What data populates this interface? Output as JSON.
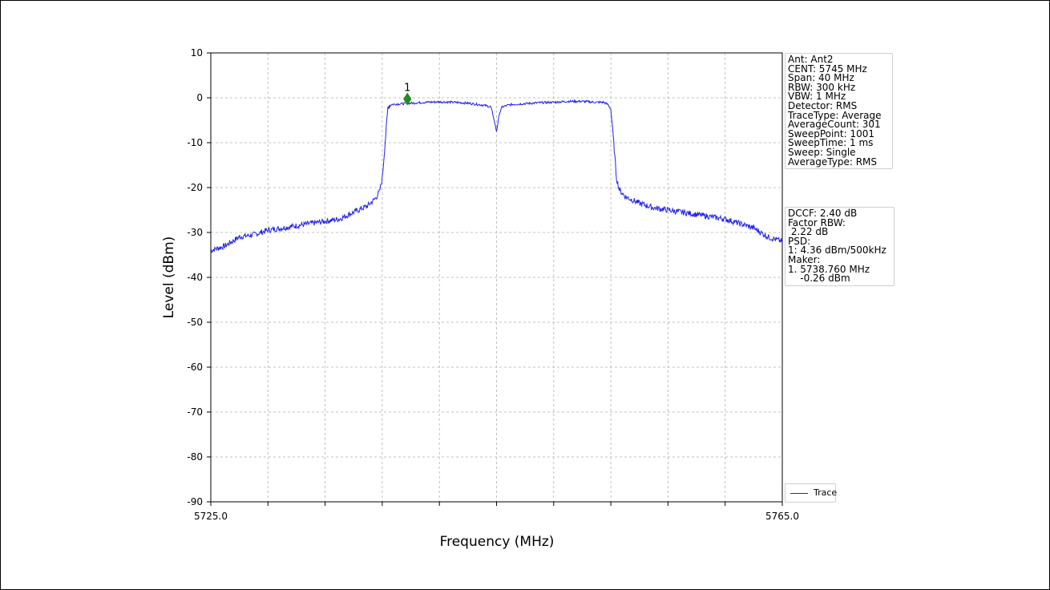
{
  "chart_data": {
    "type": "line",
    "xlabel": "Frequency (MHz)",
    "ylabel": "Level (dBm)",
    "xlim": [
      5725.0,
      5765.0
    ],
    "ylim": [
      -90,
      10
    ],
    "x_tick_labels": [
      "5725.0",
      "5765.0"
    ],
    "x_minor_ticks": [
      5729,
      5733,
      5737,
      5741,
      5745,
      5749,
      5753,
      5757,
      5761
    ],
    "y_ticks": [
      10,
      0,
      -10,
      -20,
      -30,
      -40,
      -50,
      -60,
      -70,
      -80,
      -90
    ],
    "grid": true,
    "series": [
      {
        "name": "Trace",
        "color": "#2222ee",
        "x": [
          5725.0,
          5726.0,
          5727.0,
          5728.0,
          5729.0,
          5730.0,
          5731.0,
          5732.0,
          5733.0,
          5734.0,
          5735.0,
          5736.0,
          5736.5,
          5736.8,
          5737.0,
          5737.2,
          5737.4,
          5737.6,
          5738.0,
          5739.0,
          5740.0,
          5741.0,
          5742.0,
          5743.0,
          5744.0,
          5744.6,
          5744.8,
          5745.0,
          5745.2,
          5745.4,
          5746.0,
          5747.0,
          5748.0,
          5749.0,
          5750.0,
          5751.0,
          5752.0,
          5752.5,
          5752.8,
          5753.0,
          5753.2,
          5753.4,
          5753.6,
          5754.0,
          5755.0,
          5756.0,
          5757.0,
          5758.0,
          5759.0,
          5760.0,
          5761.0,
          5762.0,
          5763.0,
          5764.0,
          5765.0
        ],
        "y": [
          -34.0,
          -33.0,
          -31.0,
          -30.5,
          -29.5,
          -29.0,
          -28.5,
          -28.0,
          -27.5,
          -27.0,
          -25.5,
          -24.0,
          -22.5,
          -21.0,
          -18.0,
          -10.0,
          -2.0,
          -1.5,
          -1.4,
          -1.2,
          -1.0,
          -0.9,
          -1.0,
          -1.2,
          -1.6,
          -2.0,
          -4.5,
          -7.5,
          -3.5,
          -2.0,
          -1.5,
          -1.3,
          -1.1,
          -1.0,
          -0.8,
          -0.8,
          -1.0,
          -1.0,
          -1.5,
          -2.5,
          -10.0,
          -18.0,
          -20.5,
          -22.0,
          -23.5,
          -24.5,
          -25.0,
          -25.5,
          -26.0,
          -26.5,
          -27.0,
          -28.0,
          -29.0,
          -31.0,
          -32.0
        ]
      }
    ],
    "marker": {
      "label": "1",
      "x": 5738.76,
      "y": -0.26,
      "color": "#228b22"
    },
    "legend": {
      "entries": [
        "Trace"
      ],
      "placement": "bottom-right"
    }
  },
  "info_box_1": [
    "Ant: Ant2",
    "CENT: 5745 MHz",
    "Span: 40 MHz",
    "RBW: 300 kHz",
    "VBW: 1 MHz",
    "Detector: RMS",
    "TraceType: Average",
    "AverageCount: 301",
    "SweepPoint: 1001",
    "SweepTime: 1 ms",
    "Sweep: Single",
    "AverageType: RMS"
  ],
  "info_box_2": [
    "DCCF: 2.40 dB",
    "Factor RBW:",
    " 2.22 dB",
    "PSD:",
    "1: 4.36 dBm/500kHz",
    "Maker:",
    "1. 5738.760 MHz",
    "    -0.26 dBm"
  ]
}
